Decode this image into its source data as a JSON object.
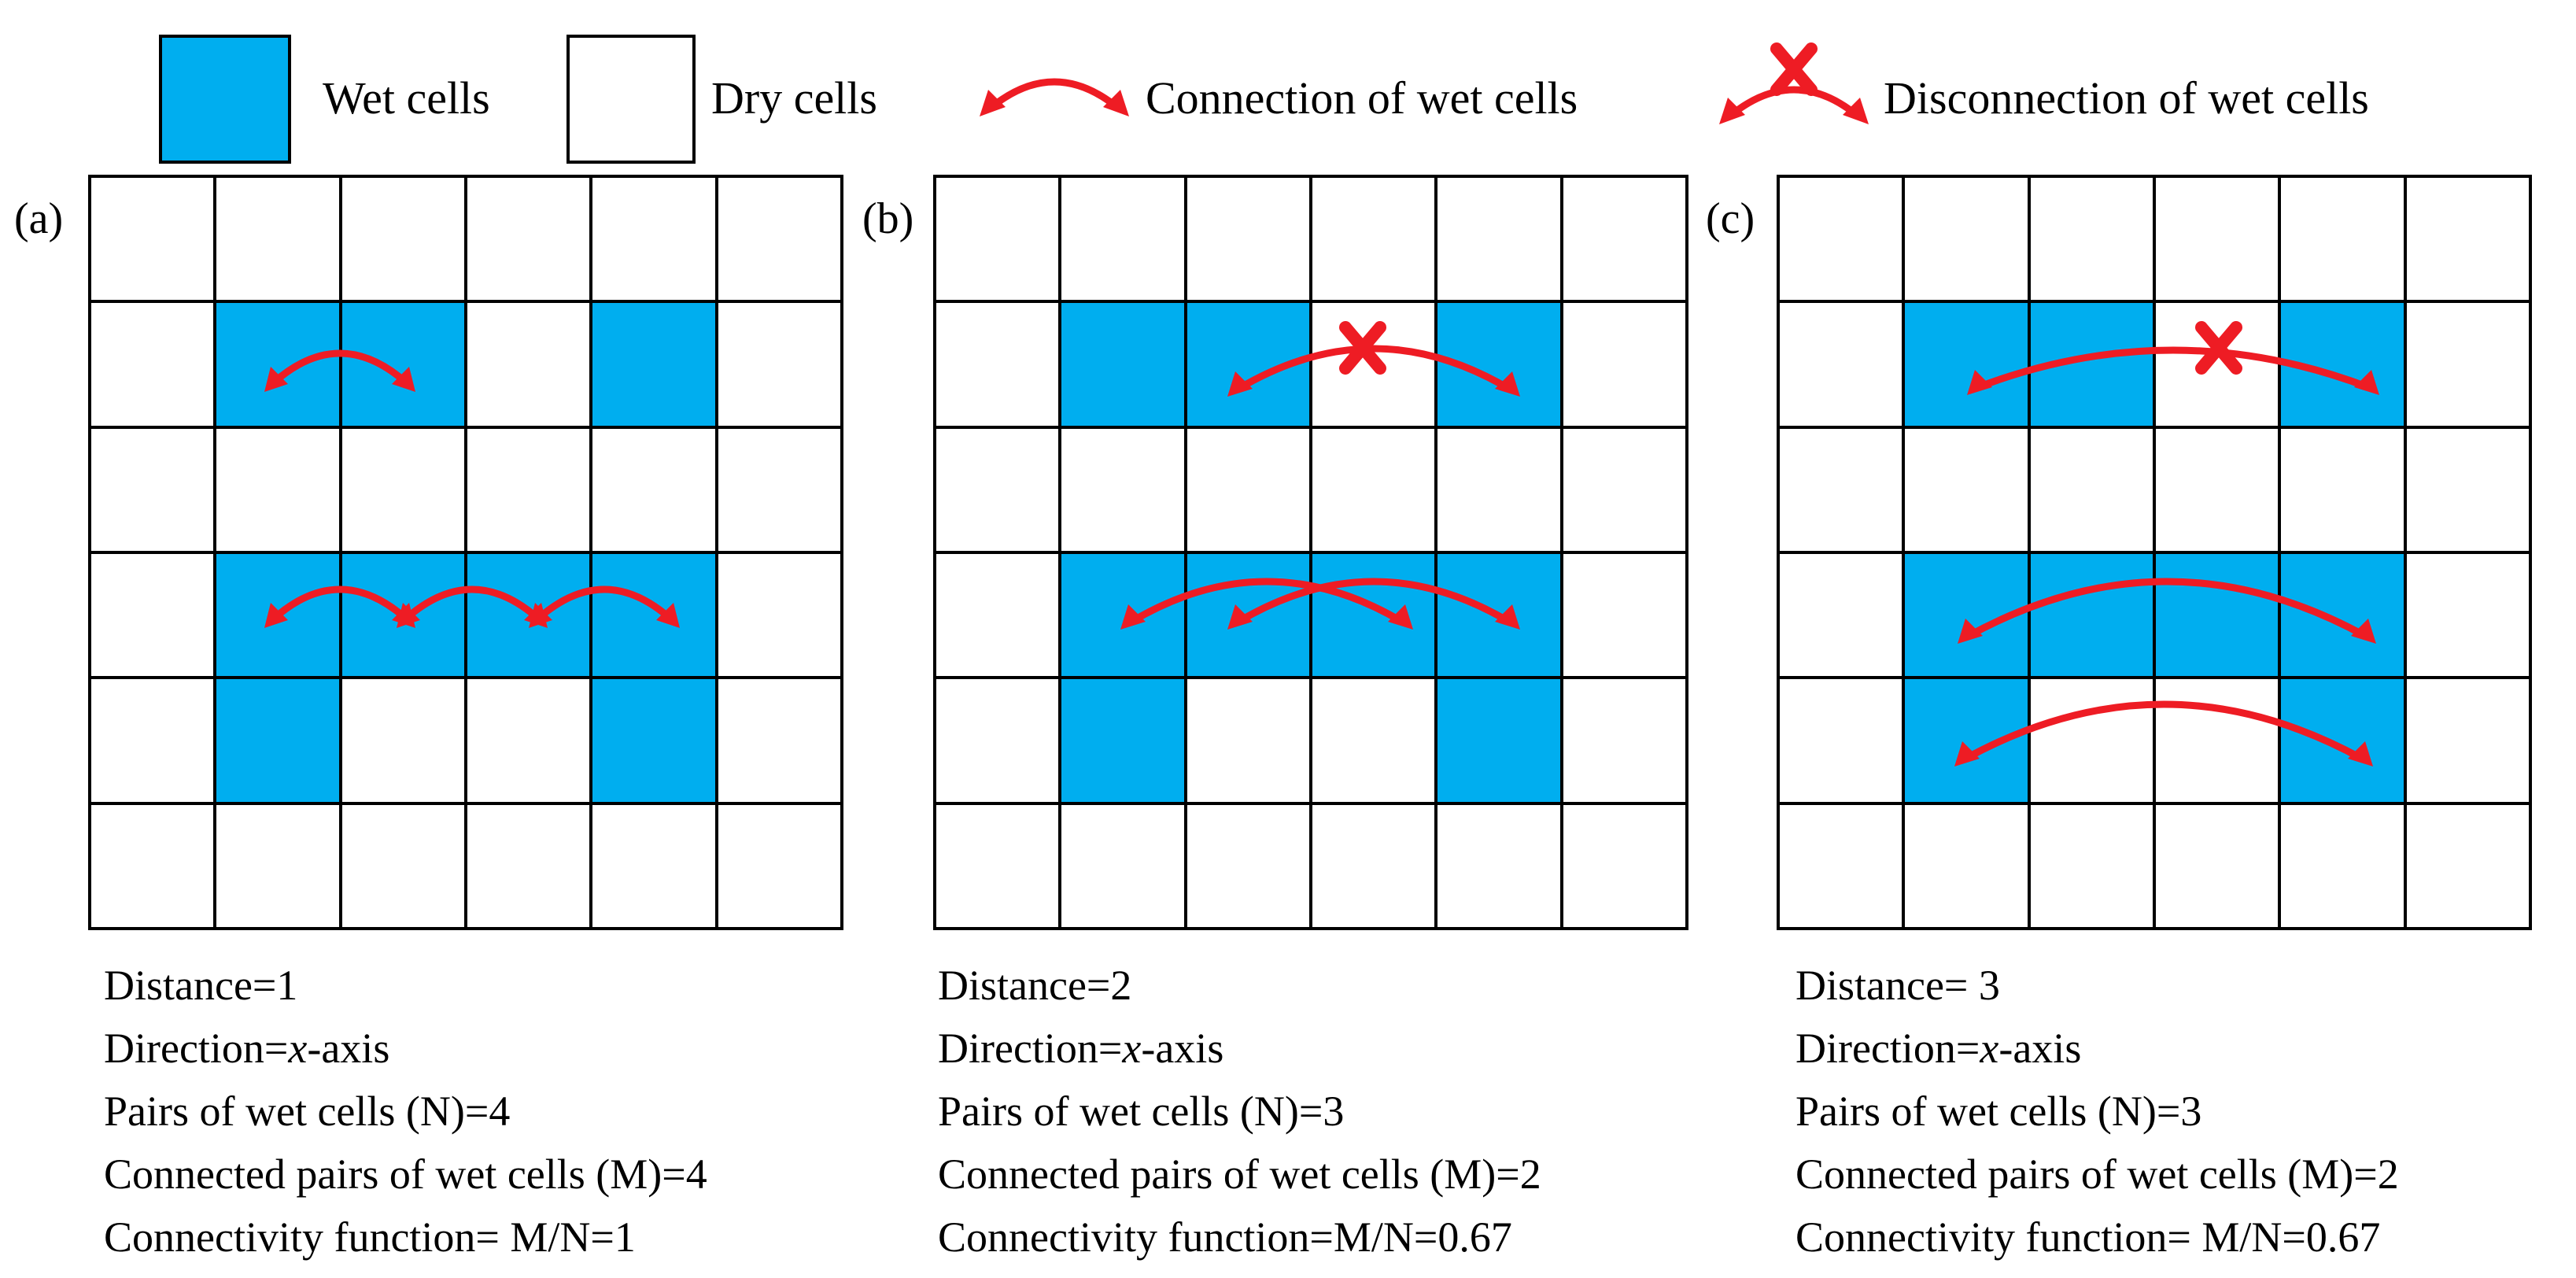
{
  "legend": {
    "wet_label": "Wet cells",
    "dry_label": "Dry cells",
    "connection_label": "Connection of wet cells",
    "disconnection_label": "Disconnection of wet cells",
    "wet_color": "#00aeef",
    "dry_color": "#ffffff",
    "arrow_color": "#ee1c24"
  },
  "panels": [
    {
      "label": "(a)",
      "wet_cells": [
        [
          1,
          1
        ],
        [
          1,
          2
        ],
        [
          1,
          4
        ],
        [
          3,
          1
        ],
        [
          3,
          2
        ],
        [
          3,
          3
        ],
        [
          3,
          4
        ],
        [
          4,
          1
        ],
        [
          4,
          4
        ]
      ],
      "info": {
        "distance": "Distance=1",
        "direction_prefix": "Direction=",
        "direction_axis": "x",
        "direction_suffix": "-axis",
        "pairs": "Pairs of wet cells (N)=4",
        "connected": "Connected pairs of wet cells (M)=4",
        "function": "Connectivity function= M/N=1"
      }
    },
    {
      "label": "(b)",
      "wet_cells": [
        [
          1,
          1
        ],
        [
          1,
          2
        ],
        [
          1,
          4
        ],
        [
          3,
          1
        ],
        [
          3,
          2
        ],
        [
          3,
          3
        ],
        [
          3,
          4
        ],
        [
          4,
          1
        ],
        [
          4,
          4
        ]
      ],
      "info": {
        "distance": "Distance=2",
        "direction_prefix": "Direction=",
        "direction_axis": "x",
        "direction_suffix": "-axis",
        "pairs": "Pairs of wet cells (N)=3",
        "connected": "Connected pairs of wet cells (M)=2",
        "function": "Connectivity function=M/N=0.67"
      }
    },
    {
      "label": "(c)",
      "wet_cells": [
        [
          1,
          1
        ],
        [
          1,
          2
        ],
        [
          1,
          4
        ],
        [
          3,
          1
        ],
        [
          3,
          2
        ],
        [
          3,
          3
        ],
        [
          3,
          4
        ],
        [
          4,
          1
        ],
        [
          4,
          4
        ]
      ],
      "info": {
        "distance": "Distance= 3",
        "direction_prefix": "Direction=",
        "direction_axis": "x",
        "direction_suffix": "-axis",
        "pairs": "Pairs of wet cells (N)=3",
        "connected": "Connected pairs of wet cells (M)=2",
        "function": "Connectivity function= M/N=0.67"
      }
    }
  ]
}
